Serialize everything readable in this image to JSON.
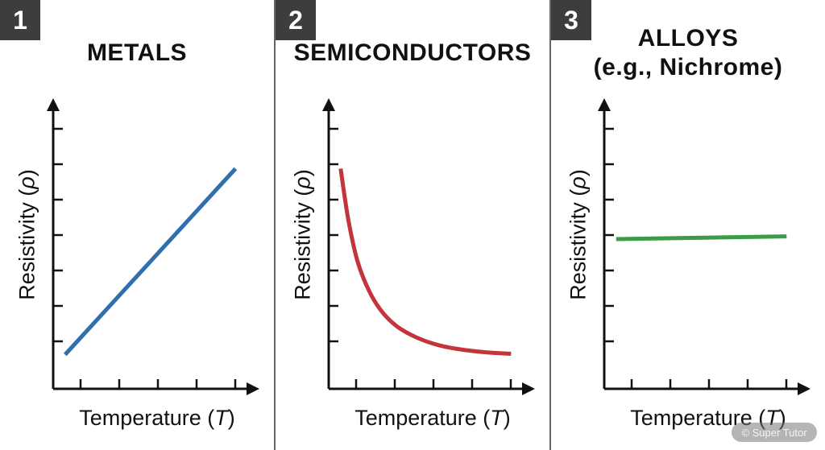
{
  "chart_data": [
    {
      "type": "line",
      "badge": "1",
      "title_lines": [
        "METALS"
      ],
      "xlabel": "Temperature",
      "xlabel_var": "T",
      "ylabel": "Resistivity",
      "ylabel_var": "ρ",
      "color": "#2f6fad",
      "xlim": [
        0,
        10
      ],
      "ylim": [
        0,
        10
      ],
      "x_ticks": 5,
      "y_ticks": 7,
      "series": [
        {
          "x": [
            0.8,
            9.8
          ],
          "y": [
            1.5,
            8.5
          ]
        }
      ]
    },
    {
      "type": "line",
      "badge": "2",
      "title_lines": [
        "SEMICONDUCTORS"
      ],
      "xlabel": "Temperature",
      "xlabel_var": "T",
      "ylabel": "Resistivity",
      "ylabel_var": "ρ",
      "color": "#c4343a",
      "xlim": [
        0,
        10
      ],
      "ylim": [
        0,
        10
      ],
      "x_ticks": 5,
      "y_ticks": 7,
      "series": [
        {
          "x": [
            0.8,
            1.2,
            1.7,
            2.3,
            3.0,
            3.8,
            4.8,
            6.0,
            7.3,
            8.6,
            9.8
          ],
          "y": [
            8.5,
            6.6,
            5.0,
            3.9,
            3.1,
            2.55,
            2.15,
            1.85,
            1.68,
            1.58,
            1.53
          ]
        }
      ]
    },
    {
      "type": "line",
      "badge": "3",
      "title_lines": [
        "ALLOYS",
        "(e.g., Nichrome)"
      ],
      "xlabel": "Temperature",
      "xlabel_var": "T",
      "ylabel": "Resistivity",
      "ylabel_var": "ρ",
      "color": "#3c9a48",
      "xlim": [
        0,
        10
      ],
      "ylim": [
        0,
        10
      ],
      "x_ticks": 5,
      "y_ticks": 7,
      "series": [
        {
          "x": [
            0.8,
            9.8
          ],
          "y": [
            5.85,
            5.95
          ]
        }
      ]
    }
  ],
  "watermark": "© Super Tutor"
}
